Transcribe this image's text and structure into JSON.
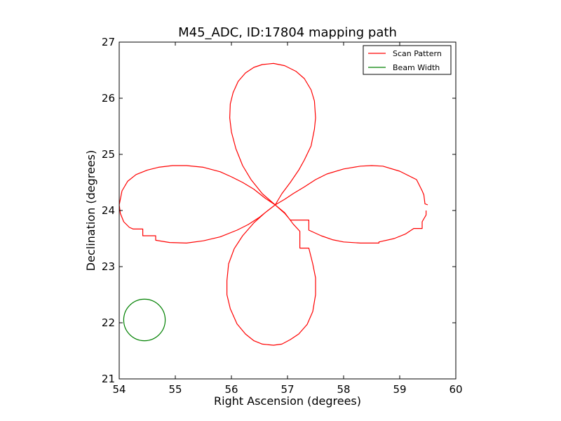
{
  "chart_data": {
    "type": "line",
    "title": "M45_ADC, ID:17804 mapping path",
    "xlabel": "Right Ascension (degrees)",
    "ylabel": "Declination (degrees)",
    "xlim": [
      54,
      60
    ],
    "ylim": [
      21,
      27
    ],
    "xticks": [
      "54",
      "55",
      "56",
      "57",
      "58",
      "59",
      "60"
    ],
    "yticks": [
      "21",
      "22",
      "23",
      "24",
      "25",
      "26",
      "27"
    ],
    "grid": false,
    "legend_position": "top-right",
    "series": [
      {
        "name": "Scan Pattern",
        "color": "#ff0000",
        "points": [
          [
            59.5,
            24.1
          ],
          [
            59.45,
            24.12
          ],
          [
            59.43,
            24.28
          ],
          [
            59.4,
            24.35
          ],
          [
            59.3,
            24.55
          ],
          [
            59.0,
            24.7
          ],
          [
            58.7,
            24.79
          ],
          [
            58.5,
            24.8
          ],
          [
            58.3,
            24.79
          ],
          [
            58.0,
            24.74
          ],
          [
            57.7,
            24.65
          ],
          [
            57.5,
            24.55
          ],
          [
            57.3,
            24.42
          ],
          [
            57.1,
            24.3
          ],
          [
            56.95,
            24.2
          ],
          [
            56.78,
            24.1
          ],
          [
            56.6,
            23.96
          ],
          [
            56.4,
            23.78
          ],
          [
            56.2,
            23.55
          ],
          [
            56.05,
            23.32
          ],
          [
            55.95,
            23.05
          ],
          [
            55.92,
            22.75
          ],
          [
            55.92,
            22.5
          ],
          [
            55.98,
            22.25
          ],
          [
            56.1,
            21.98
          ],
          [
            56.25,
            21.8
          ],
          [
            56.4,
            21.68
          ],
          [
            56.55,
            21.62
          ],
          [
            56.75,
            21.6
          ],
          [
            56.9,
            21.62
          ],
          [
            57.05,
            21.7
          ],
          [
            57.2,
            21.8
          ],
          [
            57.35,
            21.97
          ],
          [
            57.45,
            22.2
          ],
          [
            57.5,
            22.5
          ],
          [
            57.5,
            22.8
          ],
          [
            57.45,
            23.05
          ],
          [
            57.38,
            23.33
          ],
          [
            57.22,
            23.33
          ],
          [
            57.22,
            23.63
          ],
          [
            57.1,
            23.76
          ],
          [
            56.95,
            23.96
          ],
          [
            56.78,
            24.1
          ],
          [
            56.6,
            24.22
          ],
          [
            56.4,
            24.38
          ],
          [
            56.2,
            24.5
          ],
          [
            56.0,
            24.6
          ],
          [
            55.8,
            24.69
          ],
          [
            55.5,
            24.77
          ],
          [
            55.2,
            24.8
          ],
          [
            54.95,
            24.8
          ],
          [
            54.7,
            24.77
          ],
          [
            54.5,
            24.72
          ],
          [
            54.3,
            24.64
          ],
          [
            54.15,
            24.52
          ],
          [
            54.05,
            24.35
          ],
          [
            54.0,
            24.1
          ],
          [
            54.02,
            23.95
          ],
          [
            54.08,
            23.8
          ],
          [
            54.18,
            23.7
          ],
          [
            54.25,
            23.67
          ],
          [
            54.42,
            23.67
          ],
          [
            54.42,
            23.55
          ],
          [
            54.65,
            23.55
          ],
          [
            54.65,
            23.47
          ],
          [
            54.9,
            23.43
          ],
          [
            55.2,
            23.42
          ],
          [
            55.5,
            23.46
          ],
          [
            55.8,
            23.53
          ],
          [
            56.1,
            23.65
          ],
          [
            56.3,
            23.75
          ],
          [
            56.5,
            23.88
          ],
          [
            56.65,
            24.0
          ],
          [
            56.78,
            24.1
          ],
          [
            56.9,
            24.3
          ],
          [
            57.05,
            24.5
          ],
          [
            57.2,
            24.72
          ],
          [
            57.3,
            24.9
          ],
          [
            57.42,
            25.15
          ],
          [
            57.48,
            25.45
          ],
          [
            57.5,
            25.65
          ],
          [
            57.48,
            25.95
          ],
          [
            57.42,
            26.15
          ],
          [
            57.3,
            26.35
          ],
          [
            57.15,
            26.48
          ],
          [
            56.95,
            26.58
          ],
          [
            56.75,
            26.62
          ],
          [
            56.55,
            26.6
          ],
          [
            56.4,
            26.55
          ],
          [
            56.25,
            26.45
          ],
          [
            56.12,
            26.3
          ],
          [
            56.03,
            26.1
          ],
          [
            55.98,
            25.9
          ],
          [
            55.97,
            25.65
          ],
          [
            56.0,
            25.4
          ],
          [
            56.08,
            25.1
          ],
          [
            56.2,
            24.8
          ],
          [
            56.35,
            24.55
          ],
          [
            56.55,
            24.3
          ],
          [
            56.78,
            24.1
          ],
          [
            56.95,
            23.95
          ],
          [
            57.05,
            23.83
          ],
          [
            57.38,
            23.83
          ],
          [
            57.38,
            23.65
          ],
          [
            57.6,
            23.55
          ],
          [
            57.8,
            23.48
          ],
          [
            58.0,
            23.44
          ],
          [
            58.3,
            23.42
          ],
          [
            58.63,
            23.42
          ],
          [
            58.63,
            23.44
          ],
          [
            58.9,
            23.5
          ],
          [
            59.1,
            23.58
          ],
          [
            59.25,
            23.68
          ],
          [
            59.4,
            23.68
          ],
          [
            59.4,
            23.8
          ],
          [
            59.47,
            23.92
          ],
          [
            59.47,
            24.0
          ]
        ]
      },
      {
        "name": "Beam Width",
        "color": "#008000",
        "shape": "circle",
        "center": [
          54.45,
          22.05
        ],
        "radius": 0.37
      }
    ]
  }
}
